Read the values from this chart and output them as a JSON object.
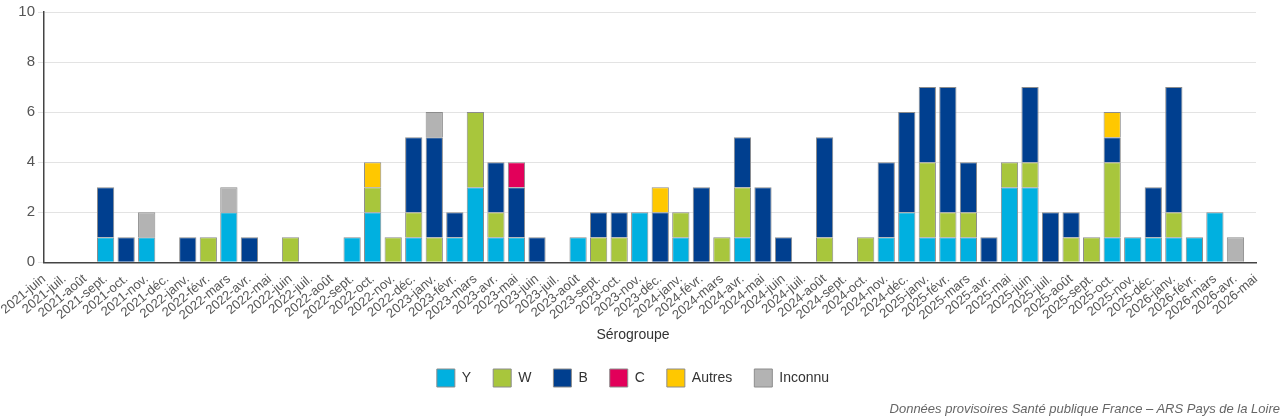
{
  "chart_data": {
    "type": "bar",
    "stacked": true,
    "categories": [
      "2021-juin",
      "2021-juil.",
      "2021-août",
      "2021-sept.",
      "2021-oct.",
      "2021-nov.",
      "2021-déc.",
      "2022-janv.",
      "2022-févr.",
      "2022-mars",
      "2022-avr.",
      "2022-mai",
      "2022-juin",
      "2022-juil.",
      "2022-août",
      "2022-sept.",
      "2022-oct.",
      "2022-nov.",
      "2022-déc.",
      "2023-janv.",
      "2023-févr.",
      "2023-mars",
      "2023-avr.",
      "2023-mai",
      "2023-juin",
      "2023-juil.",
      "2023-août",
      "2023-sept.",
      "2023-oct.",
      "2023-nov.",
      "2023-déc.",
      "2024-janv.",
      "2024-févr.",
      "2024-mars",
      "2024-avr.",
      "2024-mai",
      "2024-juin",
      "2024-juil.",
      "2024-août",
      "2024-sept.",
      "2024-oct.",
      "2024-nov.",
      "2024-déc.",
      "2025-janv.",
      "2025-févr.",
      "2025-mars",
      "2025-avr.",
      "2025-mai",
      "2025-juin",
      "2025-juil.",
      "2025-août",
      "2025-sept.",
      "2025-oct.",
      "2025-nov.",
      "2025-déc.",
      "2026-janv.",
      "2026-févr.",
      "2026-mars",
      "2026-avr.",
      "2026-mai"
    ],
    "series": [
      {
        "name": "Y",
        "color": "#00b0e0",
        "values": [
          0,
          0,
          0,
          1,
          0,
          1,
          0,
          0,
          0,
          2,
          0,
          0,
          0,
          0,
          0,
          1,
          2,
          0,
          1,
          0,
          1,
          3,
          1,
          1,
          0,
          0,
          1,
          0,
          0,
          2,
          0,
          1,
          0,
          0,
          1,
          0,
          0,
          0,
          0,
          0,
          0,
          1,
          2,
          1,
          1,
          1,
          0,
          3,
          3,
          0,
          0,
          0,
          1,
          1,
          1,
          1,
          1,
          2,
          0,
          0
        ]
      },
      {
        "name": "W",
        "color": "#a8c63c",
        "values": [
          0,
          0,
          0,
          0,
          0,
          0,
          0,
          0,
          1,
          0,
          0,
          0,
          1,
          0,
          0,
          0,
          1,
          1,
          1,
          1,
          0,
          3,
          1,
          0,
          0,
          0,
          0,
          1,
          1,
          0,
          0,
          1,
          0,
          1,
          2,
          0,
          0,
          0,
          1,
          0,
          1,
          0,
          0,
          3,
          1,
          1,
          0,
          1,
          1,
          0,
          1,
          1,
          3,
          0,
          0,
          1,
          0,
          0,
          0,
          0
        ]
      },
      {
        "name": "B",
        "color": "#003f8f",
        "values": [
          0,
          0,
          0,
          2,
          1,
          0,
          0,
          1,
          0,
          0,
          1,
          0,
          0,
          0,
          0,
          0,
          0,
          0,
          3,
          4,
          1,
          0,
          2,
          2,
          1,
          0,
          0,
          1,
          1,
          0,
          2,
          0,
          3,
          0,
          2,
          3,
          1,
          0,
          4,
          0,
          0,
          3,
          4,
          3,
          5,
          2,
          1,
          0,
          3,
          2,
          1,
          0,
          1,
          0,
          2,
          5,
          0,
          0,
          0,
          0
        ]
      },
      {
        "name": "C",
        "color": "#e2005a",
        "values": [
          0,
          0,
          0,
          0,
          0,
          0,
          0,
          0,
          0,
          0,
          0,
          0,
          0,
          0,
          0,
          0,
          0,
          0,
          0,
          0,
          0,
          0,
          0,
          1,
          0,
          0,
          0,
          0,
          0,
          0,
          0,
          0,
          0,
          0,
          0,
          0,
          0,
          0,
          0,
          0,
          0,
          0,
          0,
          0,
          0,
          0,
          0,
          0,
          0,
          0,
          0,
          0,
          0,
          0,
          0,
          0,
          0,
          0,
          0,
          0
        ]
      },
      {
        "name": "Autres",
        "color": "#ffc800",
        "values": [
          0,
          0,
          0,
          0,
          0,
          0,
          0,
          0,
          0,
          0,
          0,
          0,
          0,
          0,
          0,
          0,
          1,
          0,
          0,
          0,
          0,
          0,
          0,
          0,
          0,
          0,
          0,
          0,
          0,
          0,
          1,
          0,
          0,
          0,
          0,
          0,
          0,
          0,
          0,
          0,
          0,
          0,
          0,
          0,
          0,
          0,
          0,
          0,
          0,
          0,
          0,
          0,
          1,
          0,
          0,
          0,
          0,
          0,
          0,
          0
        ]
      },
      {
        "name": "Inconnu",
        "color": "#b3b3b3",
        "values": [
          0,
          0,
          0,
          0,
          0,
          1,
          0,
          0,
          0,
          1,
          0,
          0,
          0,
          0,
          0,
          0,
          0,
          0,
          0,
          1,
          0,
          0,
          0,
          0,
          0,
          0,
          0,
          0,
          0,
          0,
          0,
          0,
          0,
          0,
          0,
          0,
          0,
          0,
          0,
          0,
          0,
          0,
          0,
          0,
          0,
          0,
          0,
          0,
          0,
          0,
          0,
          0,
          0,
          0,
          0,
          0,
          0,
          0,
          1,
          0
        ]
      }
    ],
    "ylim": [
      0,
      10
    ],
    "yticks": [
      0,
      2,
      4,
      6,
      8,
      10
    ],
    "grid": "y",
    "legend": "bottom",
    "legend_title": "Sérogroupe",
    "annotations": [
      "Données provisoires Santé publique France – ARS Pays de la Loire"
    ]
  }
}
